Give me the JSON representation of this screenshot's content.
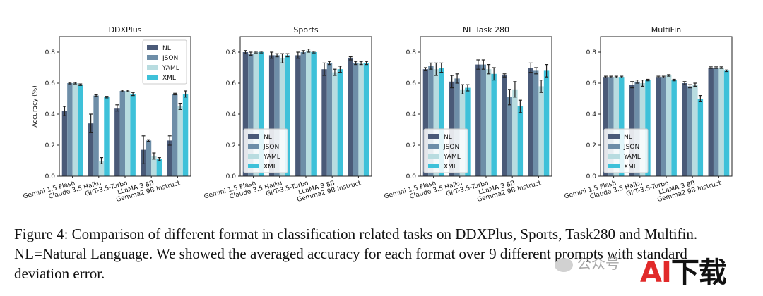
{
  "chart_data": [
    {
      "type": "bar",
      "title": "DDXPlus",
      "ylabel": "Accuracy (%)",
      "xlabel": "",
      "ylim": [
        0,
        0.9
      ],
      "yticks": [
        "0.0",
        "0.2",
        "0.4",
        "0.6",
        "0.8"
      ],
      "categories": [
        "Gemini 1.5 Flash",
        "Claude 3.5 Haiku",
        "GPT-3.5-Turbo",
        "LLaMA 3 8B",
        "Gemma2 9B Instruct"
      ],
      "legend_position": "top-right",
      "series": [
        {
          "name": "NL",
          "values": [
            0.42,
            0.34,
            0.44,
            0.17,
            0.23
          ],
          "errors": [
            0.03,
            0.06,
            0.02,
            0.09,
            0.03
          ]
        },
        {
          "name": "JSON",
          "values": [
            0.6,
            0.52,
            0.55,
            0.23,
            0.53
          ],
          "errors": [
            0.005,
            0.005,
            0.005,
            0.005,
            0.005
          ]
        },
        {
          "name": "YAML",
          "values": [
            0.6,
            0.1,
            0.55,
            0.13,
            0.45
          ],
          "errors": [
            0.005,
            0.02,
            0.005,
            0.02,
            0.02
          ]
        },
        {
          "name": "XML",
          "values": [
            0.59,
            0.51,
            0.53,
            0.11,
            0.53
          ],
          "errors": [
            0.005,
            0.005,
            0.01,
            0.01,
            0.02
          ]
        }
      ]
    },
    {
      "type": "bar",
      "title": "Sports",
      "ylabel": "",
      "xlabel": "",
      "ylim": [
        0,
        0.9
      ],
      "yticks": [
        "0.0",
        "0.2",
        "0.4",
        "0.6",
        "0.8"
      ],
      "categories": [
        "Gemini 1.5 Flash",
        "Claude 3.5 Haiku",
        "GPT-3.5-Turbo",
        "LLaMA 3 8B",
        "Gemma2 9B Instruct"
      ],
      "legend_position": "bottom-left",
      "series": [
        {
          "name": "NL",
          "values": [
            0.8,
            0.78,
            0.78,
            0.69,
            0.76
          ],
          "errors": [
            0.01,
            0.02,
            0.02,
            0.04,
            0.01
          ]
        },
        {
          "name": "JSON",
          "values": [
            0.79,
            0.78,
            0.8,
            0.73,
            0.73
          ],
          "errors": [
            0.01,
            0.01,
            0.01,
            0.01,
            0.01
          ]
        },
        {
          "name": "YAML",
          "values": [
            0.8,
            0.76,
            0.81,
            0.67,
            0.73
          ],
          "errors": [
            0.005,
            0.03,
            0.01,
            0.02,
            0.01
          ]
        },
        {
          "name": "XML",
          "values": [
            0.8,
            0.78,
            0.8,
            0.69,
            0.73
          ],
          "errors": [
            0.005,
            0.01,
            0.005,
            0.02,
            0.01
          ]
        }
      ]
    },
    {
      "type": "bar",
      "title": "NL Task 280",
      "ylabel": "",
      "xlabel": "",
      "ylim": [
        0,
        0.9
      ],
      "yticks": [
        "0.0",
        "0.2",
        "0.4",
        "0.6",
        "0.8"
      ],
      "categories": [
        "Gemini 1.5 Flash",
        "Claude 3.5 Haiku",
        "GPT-3.5-Turbo",
        "LLaMA 3 8B",
        "Gemma2 9B Instruct"
      ],
      "legend_position": "bottom-left",
      "series": [
        {
          "name": "NL",
          "values": [
            0.69,
            0.61,
            0.72,
            0.65,
            0.7
          ],
          "errors": [
            0.01,
            0.04,
            0.03,
            0.01,
            0.03
          ]
        },
        {
          "name": "JSON",
          "values": [
            0.71,
            0.63,
            0.72,
            0.51,
            0.68
          ],
          "errors": [
            0.02,
            0.03,
            0.03,
            0.05,
            0.02
          ]
        },
        {
          "name": "YAML",
          "values": [
            0.69,
            0.56,
            0.69,
            0.56,
            0.58
          ],
          "errors": [
            0.04,
            0.03,
            0.03,
            0.05,
            0.04
          ]
        },
        {
          "name": "XML",
          "values": [
            0.7,
            0.57,
            0.66,
            0.45,
            0.68
          ],
          "errors": [
            0.03,
            0.02,
            0.04,
            0.04,
            0.04
          ]
        }
      ]
    },
    {
      "type": "bar",
      "title": "MultiFin",
      "ylabel": "",
      "xlabel": "",
      "ylim": [
        0,
        0.9
      ],
      "yticks": [
        "0.0",
        "0.2",
        "0.4",
        "0.6",
        "0.8"
      ],
      "categories": [
        "Gemini 1.5 Flash",
        "Claude 3.5 Haiku",
        "GPT-3.5-Turbo",
        "LLaMA 3 8B",
        "Gemma2 9B Instruct"
      ],
      "legend_position": "bottom-left",
      "series": [
        {
          "name": "NL",
          "values": [
            0.64,
            0.59,
            0.64,
            0.6,
            0.7
          ],
          "errors": [
            0.005,
            0.02,
            0.005,
            0.01,
            0.005
          ]
        },
        {
          "name": "JSON",
          "values": [
            0.64,
            0.61,
            0.64,
            0.58,
            0.7
          ],
          "errors": [
            0.005,
            0.01,
            0.005,
            0.01,
            0.005
          ]
        },
        {
          "name": "YAML",
          "values": [
            0.64,
            0.6,
            0.65,
            0.59,
            0.7
          ],
          "errors": [
            0.005,
            0.02,
            0.005,
            0.01,
            0.005
          ]
        },
        {
          "name": "XML",
          "values": [
            0.64,
            0.62,
            0.62,
            0.5,
            0.68
          ],
          "errors": [
            0.005,
            0.005,
            0.005,
            0.02,
            0.005
          ]
        }
      ]
    }
  ],
  "series_colors": {
    "NL": "#4a5a78",
    "JSON": "#6e8ea8",
    "YAML": "#b8dce0",
    "XML": "#3ec1d9"
  },
  "caption": {
    "line1": "Figure 4: Comparison of different format in classification related tasks on DDXPlus, Sports, Task280 and Multifin.",
    "line2": "NL=Natural Language. We showed the averaged accuracy for each format over 9 different prompts with standard",
    "line3": "deviation error."
  },
  "watermark": {
    "text": "公众号"
  },
  "logo": {
    "text_a": "AI",
    "text_b": "下载"
  }
}
